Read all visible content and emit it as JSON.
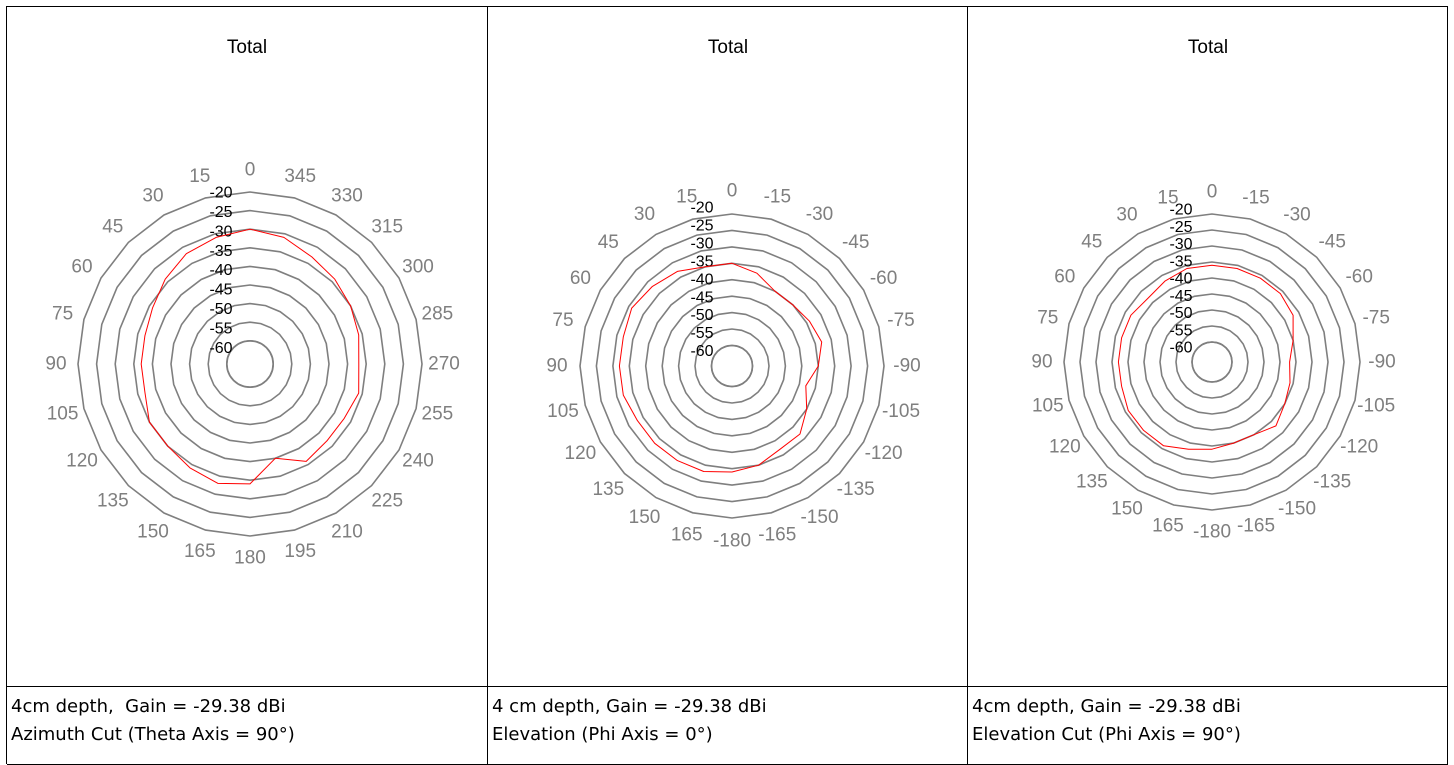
{
  "colors": {
    "trace": "#ff0000",
    "grid": "#7f7f7f",
    "text": "#000000",
    "angle_text": "#7f7f7f"
  },
  "chart_data": [
    {
      "type": "polar",
      "title": "Total",
      "radial_ticks": [
        "-20",
        "-25",
        "-30",
        "-35",
        "-40",
        "-45",
        "-50",
        "-55",
        "-60"
      ],
      "rlim": [
        -60,
        -20
      ],
      "angle_labels": [
        "0",
        "15",
        "30",
        "45",
        "60",
        "75",
        "90",
        "105",
        "120",
        "135",
        "150",
        "165",
        "180",
        "195",
        "210",
        "225",
        "240",
        "255",
        "270",
        "285",
        "300",
        "315",
        "330",
        "345"
      ],
      "series": [
        {
          "angles": [
            0,
            15,
            30,
            45,
            60,
            75,
            90,
            105,
            120,
            135,
            150,
            165,
            180,
            195,
            210,
            225,
            240,
            255,
            270,
            285,
            300,
            315,
            330,
            345
          ],
          "values": [
            -30,
            -31,
            -32,
            -34,
            -36,
            -37,
            -37,
            -37,
            -35,
            -35,
            -34,
            -33,
            -34,
            -40,
            -36,
            -37,
            -37,
            -36,
            -37,
            -36,
            -35,
            -34,
            -33,
            -31
          ]
        }
      ],
      "caption": [
        "4cm depth,  Gain = -29.38 dBi",
        "Azimuth Cut (Theta Axis = 90°)"
      ]
    },
    {
      "type": "polar",
      "title": "Total",
      "radial_ticks": [
        "-20",
        "-25",
        "-30",
        "-35",
        "-40",
        "-45",
        "-50",
        "-55",
        "-60"
      ],
      "rlim": [
        -60,
        -20
      ],
      "angle_labels": [
        "0",
        "15",
        "30",
        "45",
        "60",
        "75",
        "90",
        "105",
        "120",
        "135",
        "150",
        "165",
        "-180",
        "-165",
        "-150",
        "-135",
        "-120",
        "-105",
        "-90",
        "-75",
        "-60",
        "-45",
        "-30",
        "-15"
      ],
      "series": [
        {
          "angles": [
            0,
            15,
            30,
            45,
            60,
            75,
            90,
            105,
            120,
            135,
            150,
            165,
            -180,
            -165,
            -150,
            -135,
            -120,
            -105,
            -90,
            -75,
            -60,
            -45,
            -30,
            -15
          ],
          "values": [
            -35,
            -35,
            -33,
            -32,
            -31,
            -32,
            -32,
            -32,
            -33,
            -33,
            -33,
            -33,
            -34,
            -35,
            -37,
            -37,
            -40,
            -43,
            -40,
            -38,
            -39,
            -40,
            -40,
            -37
          ]
        }
      ],
      "caption": [
        "4 cm depth, Gain = -29.38 dBi",
        "Elevation (Phi Axis = 0°)"
      ]
    },
    {
      "type": "polar",
      "title": "Total",
      "radial_ticks": [
        "-20",
        "-25",
        "-30",
        "-35",
        "-40",
        "-45",
        "-50",
        "-55",
        "-60"
      ],
      "rlim": [
        -60,
        -20
      ],
      "angle_labels": [
        "0",
        "15",
        "30",
        "45",
        "60",
        "75",
        "90",
        "105",
        "120",
        "135",
        "150",
        "165",
        "-180",
        "-165",
        "-150",
        "-135",
        "-120",
        "-105",
        "-90",
        "-75",
        "-60",
        "-45",
        "-30",
        "-15"
      ],
      "series": [
        {
          "angles": [
            0,
            15,
            30,
            45,
            60,
            75,
            90,
            105,
            120,
            135,
            150,
            165,
            -180,
            -165,
            -150,
            -135,
            -120,
            -105,
            -90,
            -75,
            -60,
            -45,
            -30,
            -15
          ],
          "values": [
            -36,
            -36,
            -37,
            -38,
            -37,
            -37,
            -37,
            -37,
            -36,
            -36,
            -36,
            -38,
            -39,
            -40,
            -40,
            -38,
            -40,
            -41,
            -42,
            -40,
            -37,
            -36,
            -36,
            -36
          ]
        }
      ],
      "caption": [
        "4cm depth, Gain = -29.38 dBi",
        "Elevation Cut (Phi Axis = 90°)"
      ]
    }
  ]
}
